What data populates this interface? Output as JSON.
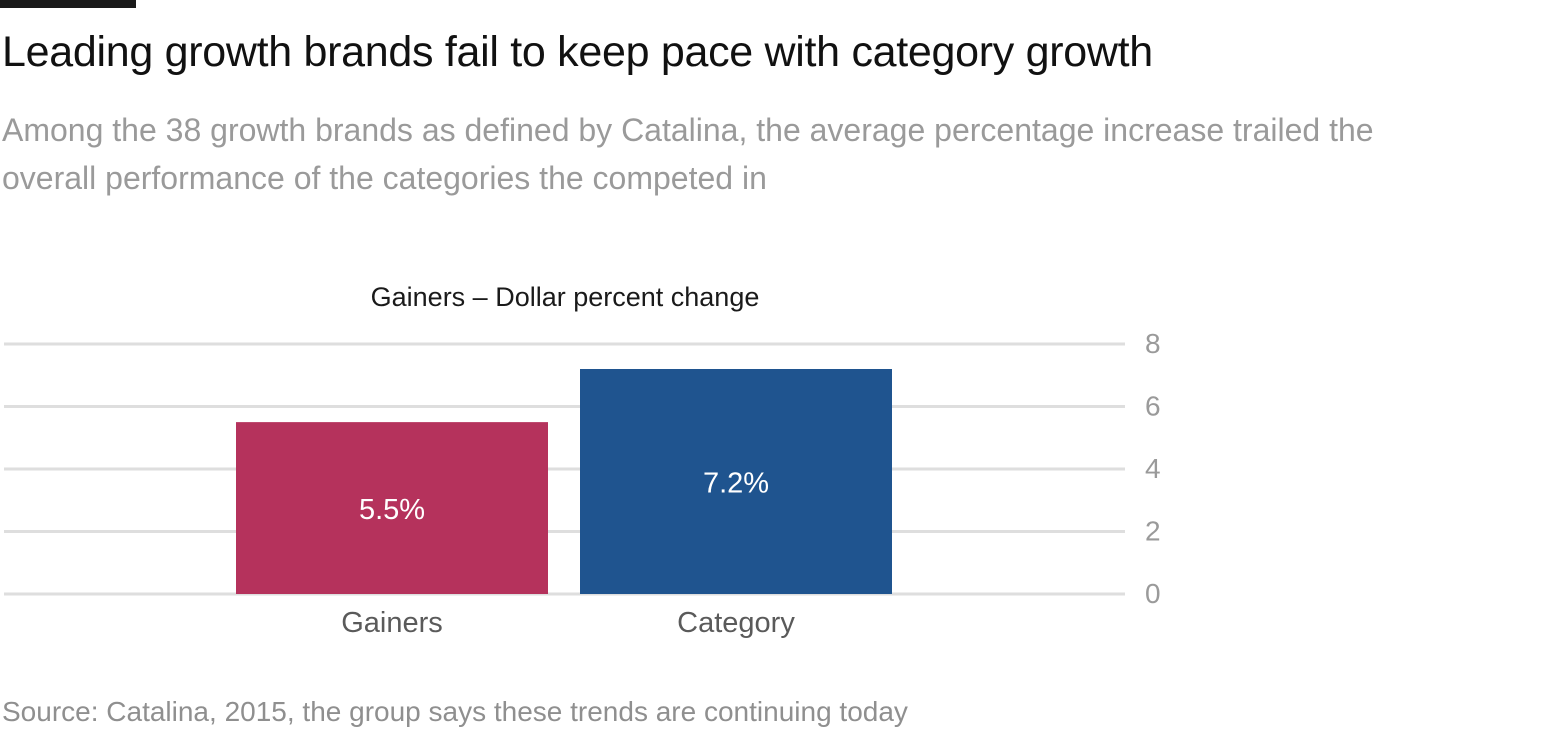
{
  "header": {
    "title": "Leading growth brands fail to keep pace with category growth",
    "subtitle": "Among the 38 growth brands as defined by Catalina, the average percentage increase trailed the overall performance of the categories the competed in"
  },
  "footer": {
    "source": "Source: Catalina, 2015, the group says these trends are continuing today"
  },
  "colors": {
    "gainers": "#b5325c",
    "category": "#1f548f",
    "grid": "#dedede",
    "tick": "#9a9a9a",
    "category_label": "#5a5a5a"
  },
  "chart_data": {
    "type": "bar",
    "title": "Gainers – Dollar percent change",
    "xlabel": "",
    "ylabel": "",
    "categories": [
      "Gainers",
      "Category"
    ],
    "values": [
      5.5,
      7.2
    ],
    "data_labels": [
      "5.5%",
      "7.2%"
    ],
    "ylim": [
      0,
      8
    ],
    "yticks": [
      0,
      2,
      4,
      6,
      8
    ],
    "ytick_labels": [
      "0",
      "2",
      "4",
      "6",
      "8"
    ],
    "y_axis_position": "right",
    "grid": true,
    "legend": "none"
  }
}
